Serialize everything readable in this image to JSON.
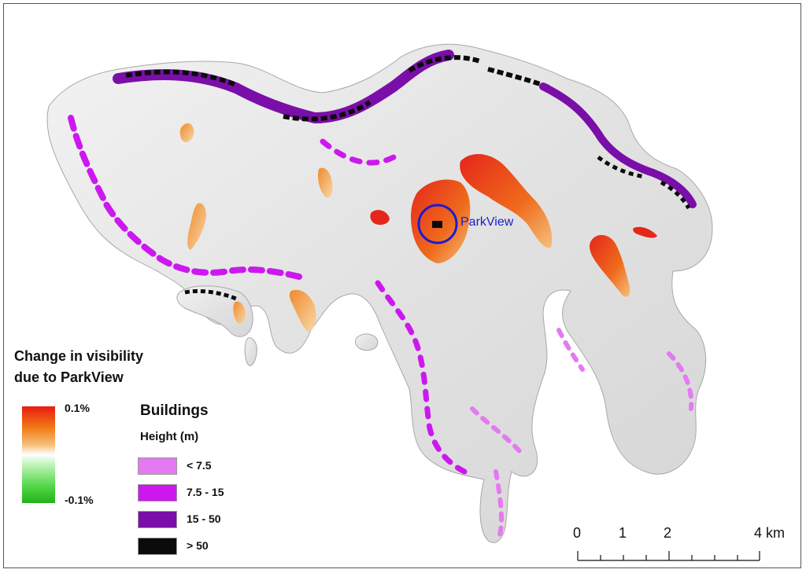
{
  "map": {
    "callout_label": "ParkView"
  },
  "visibility_legend": {
    "title_line1": "Change in visibility",
    "title_line2": "due to ParkView",
    "max_label": "0.1%",
    "min_label": "-0.1%",
    "colors": {
      "max": "#e81b12",
      "mid_high": "#f17a14",
      "zero": "#ffffff",
      "mid_low": "#55d84a",
      "min": "#22b11b"
    }
  },
  "buildings_legend": {
    "title": "Buildings",
    "subtitle": "Height (m)",
    "classes": [
      {
        "label": "< 7.5",
        "color": "#e47af2"
      },
      {
        "label": "7.5 - 15",
        "color": "#cc18ef"
      },
      {
        "label": "15 - 50",
        "color": "#7a0ea8"
      },
      {
        "label": "> 50",
        "color": "#0b0b0b"
      }
    ]
  },
  "scale_bar": {
    "labels": [
      "0",
      "1",
      "2",
      "4 km"
    ]
  }
}
